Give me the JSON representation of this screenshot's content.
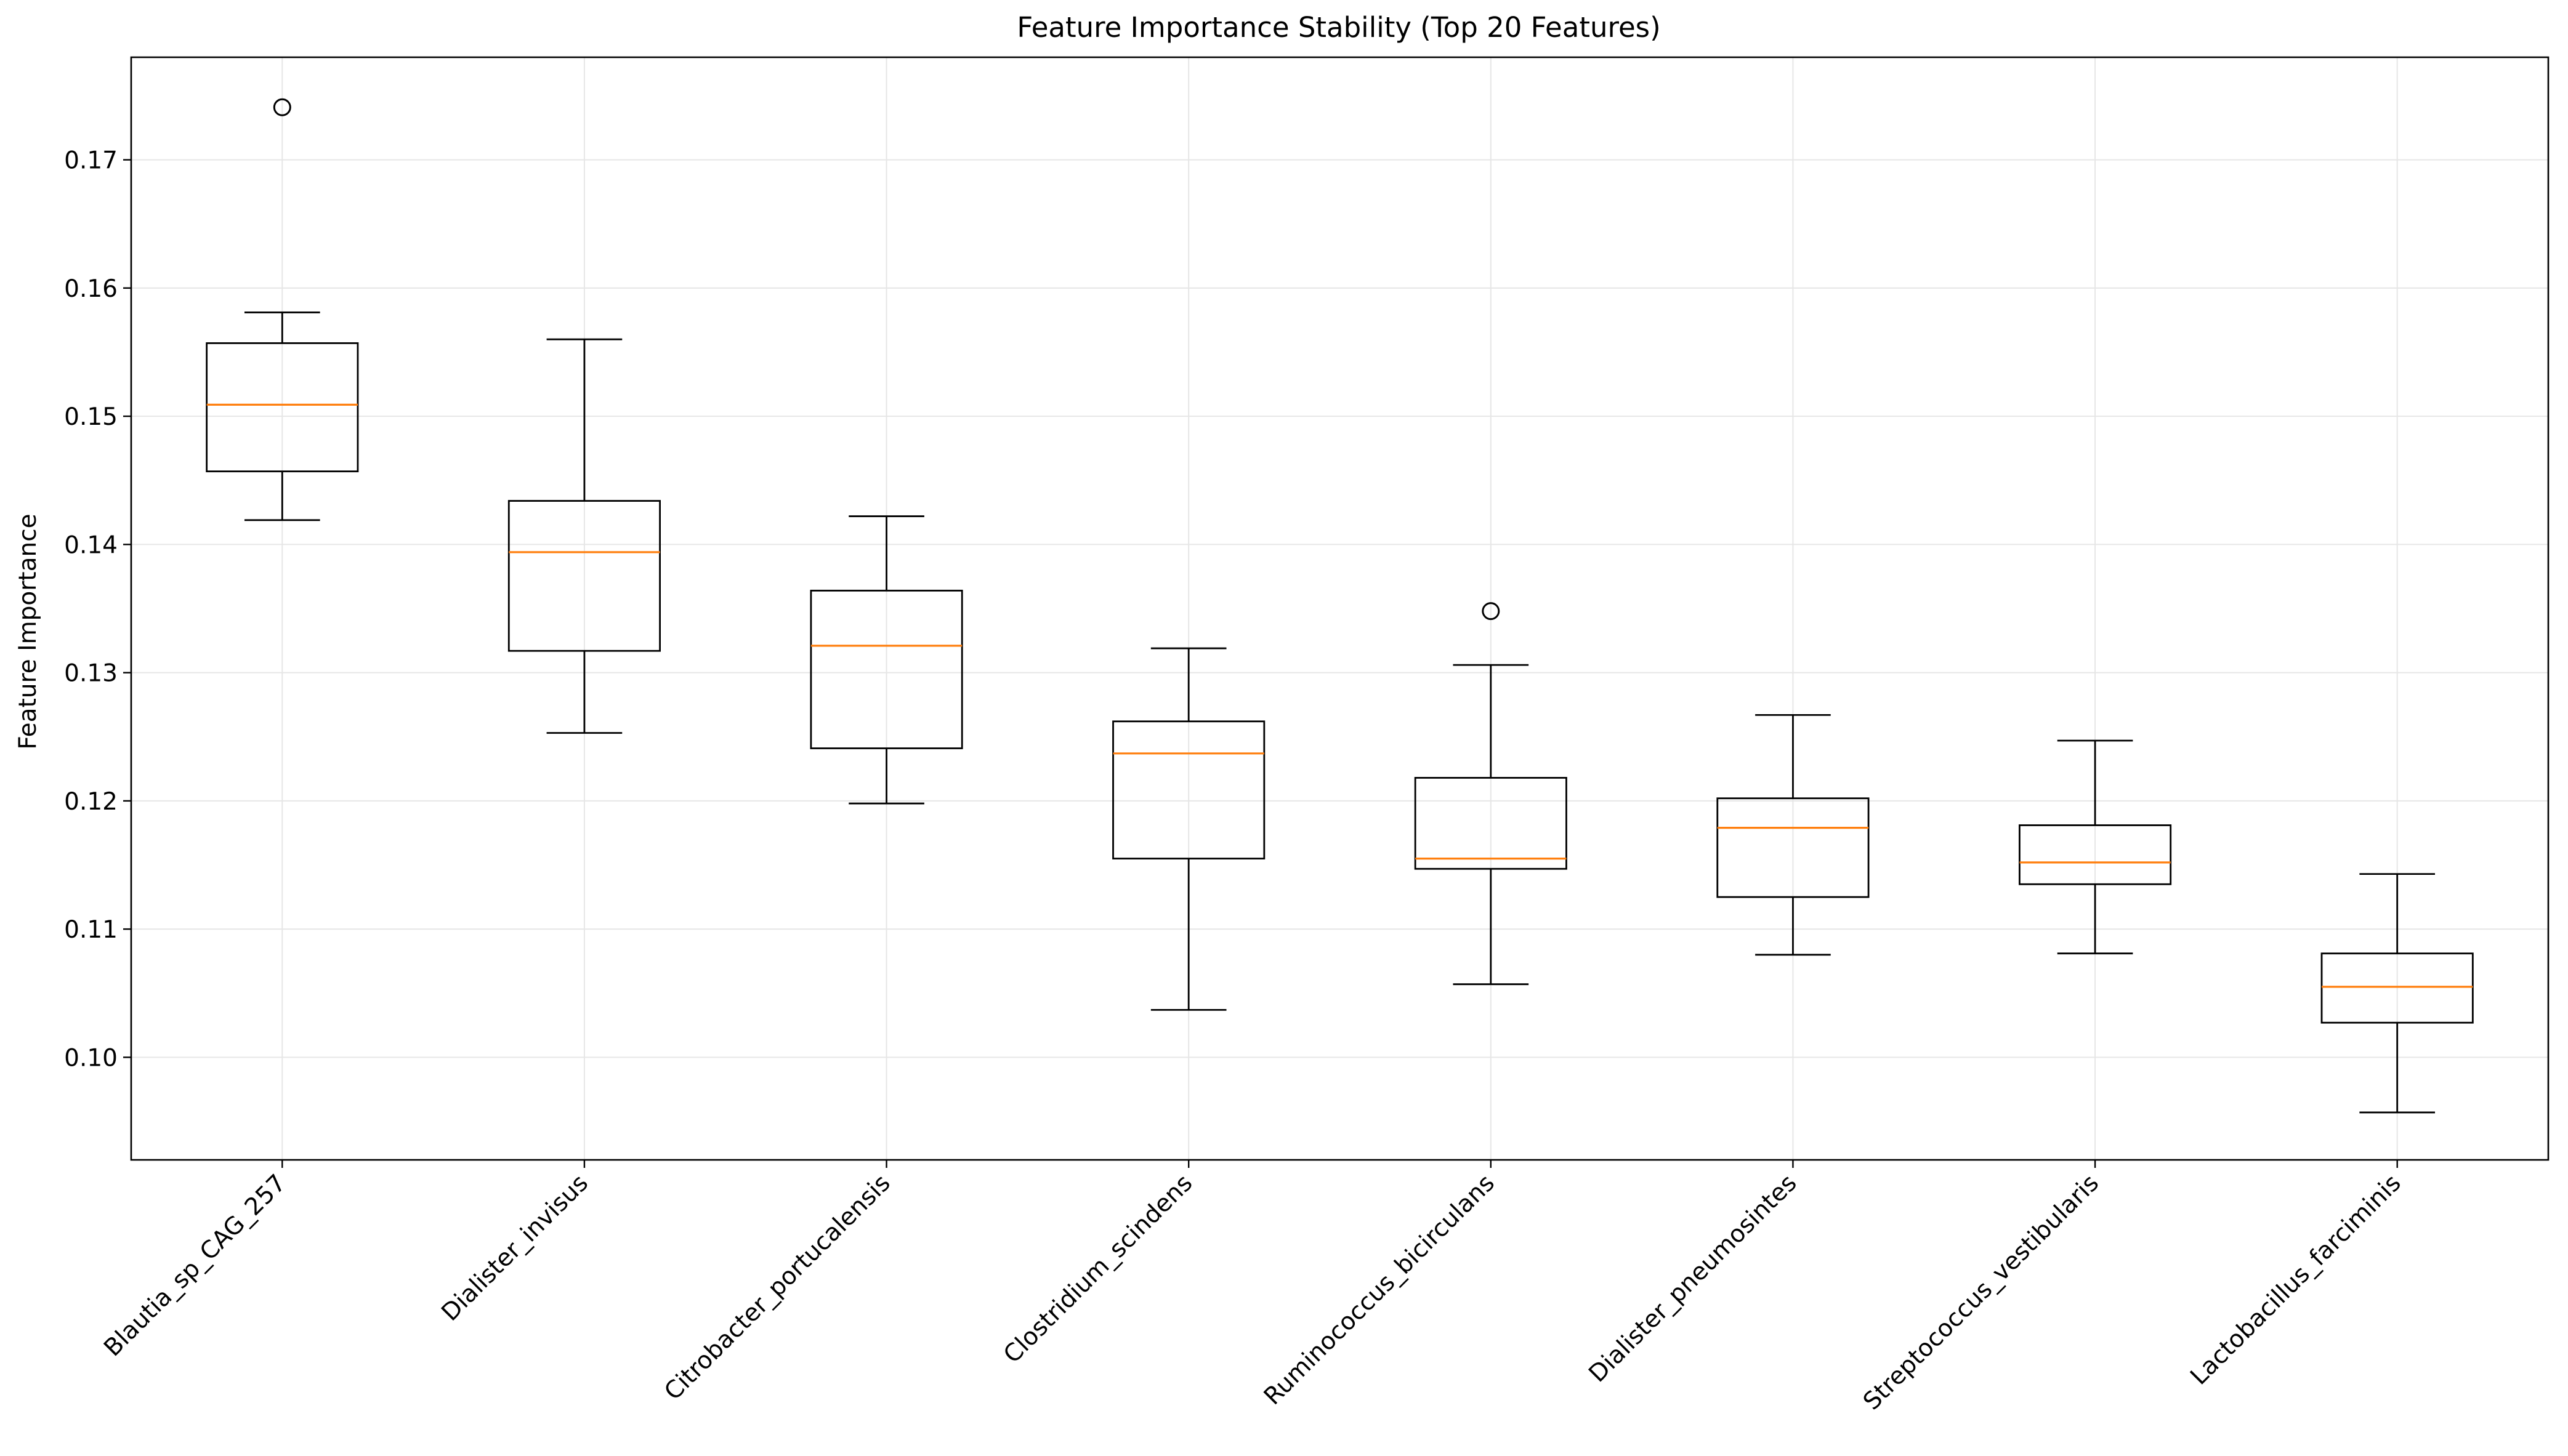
{
  "chart_data": {
    "type": "box",
    "title": "Feature Importance Stability (Top 20 Features)",
    "xlabel": "",
    "ylabel": "Feature Importance",
    "ylim": [
      0.092,
      0.178
    ],
    "yticks": [
      0.1,
      0.11,
      0.12,
      0.13,
      0.14,
      0.15,
      0.16,
      0.17
    ],
    "ytick_labels": [
      "0.10",
      "0.11",
      "0.12",
      "0.13",
      "0.14",
      "0.15",
      "0.16",
      "0.17"
    ],
    "grid": true,
    "categories": [
      "Blautia_sp_CAG_257",
      "Dialister_invisus",
      "Citrobacter_portucalensis",
      "Clostridium_scindens",
      "Ruminococcus_bicirculans",
      "Dialister_pneumosintes",
      "Streptococcus_vestibularis",
      "Lactobacillus_farciminis"
    ],
    "boxes": [
      {
        "whisker_low": 0.1419,
        "q1": 0.1457,
        "median": 0.1509,
        "q3": 0.1557,
        "whisker_high": 0.1581,
        "outliers": [
          0.1741
        ]
      },
      {
        "whisker_low": 0.1253,
        "q1": 0.1317,
        "median": 0.1394,
        "q3": 0.1434,
        "whisker_high": 0.156,
        "outliers": []
      },
      {
        "whisker_low": 0.1198,
        "q1": 0.1241,
        "median": 0.1321,
        "q3": 0.1364,
        "whisker_high": 0.1422,
        "outliers": []
      },
      {
        "whisker_low": 0.1037,
        "q1": 0.1155,
        "median": 0.1237,
        "q3": 0.1262,
        "whisker_high": 0.1319,
        "outliers": []
      },
      {
        "whisker_low": 0.1057,
        "q1": 0.1147,
        "median": 0.1155,
        "q3": 0.1218,
        "whisker_high": 0.1306,
        "outliers": [
          0.1348
        ]
      },
      {
        "whisker_low": 0.108,
        "q1": 0.1125,
        "median": 0.1179,
        "q3": 0.1202,
        "whisker_high": 0.1267,
        "outliers": []
      },
      {
        "whisker_low": 0.1081,
        "q1": 0.1135,
        "median": 0.1152,
        "q3": 0.1181,
        "whisker_high": 0.1247,
        "outliers": []
      },
      {
        "whisker_low": 0.0957,
        "q1": 0.1027,
        "median": 0.1055,
        "q3": 0.1081,
        "whisker_high": 0.1143,
        "outliers": []
      }
    ],
    "colors": {
      "box": "#000000",
      "median": "#ff7f0e",
      "grid": "#e6e6e6",
      "outlier_edge": "#000000"
    }
  }
}
